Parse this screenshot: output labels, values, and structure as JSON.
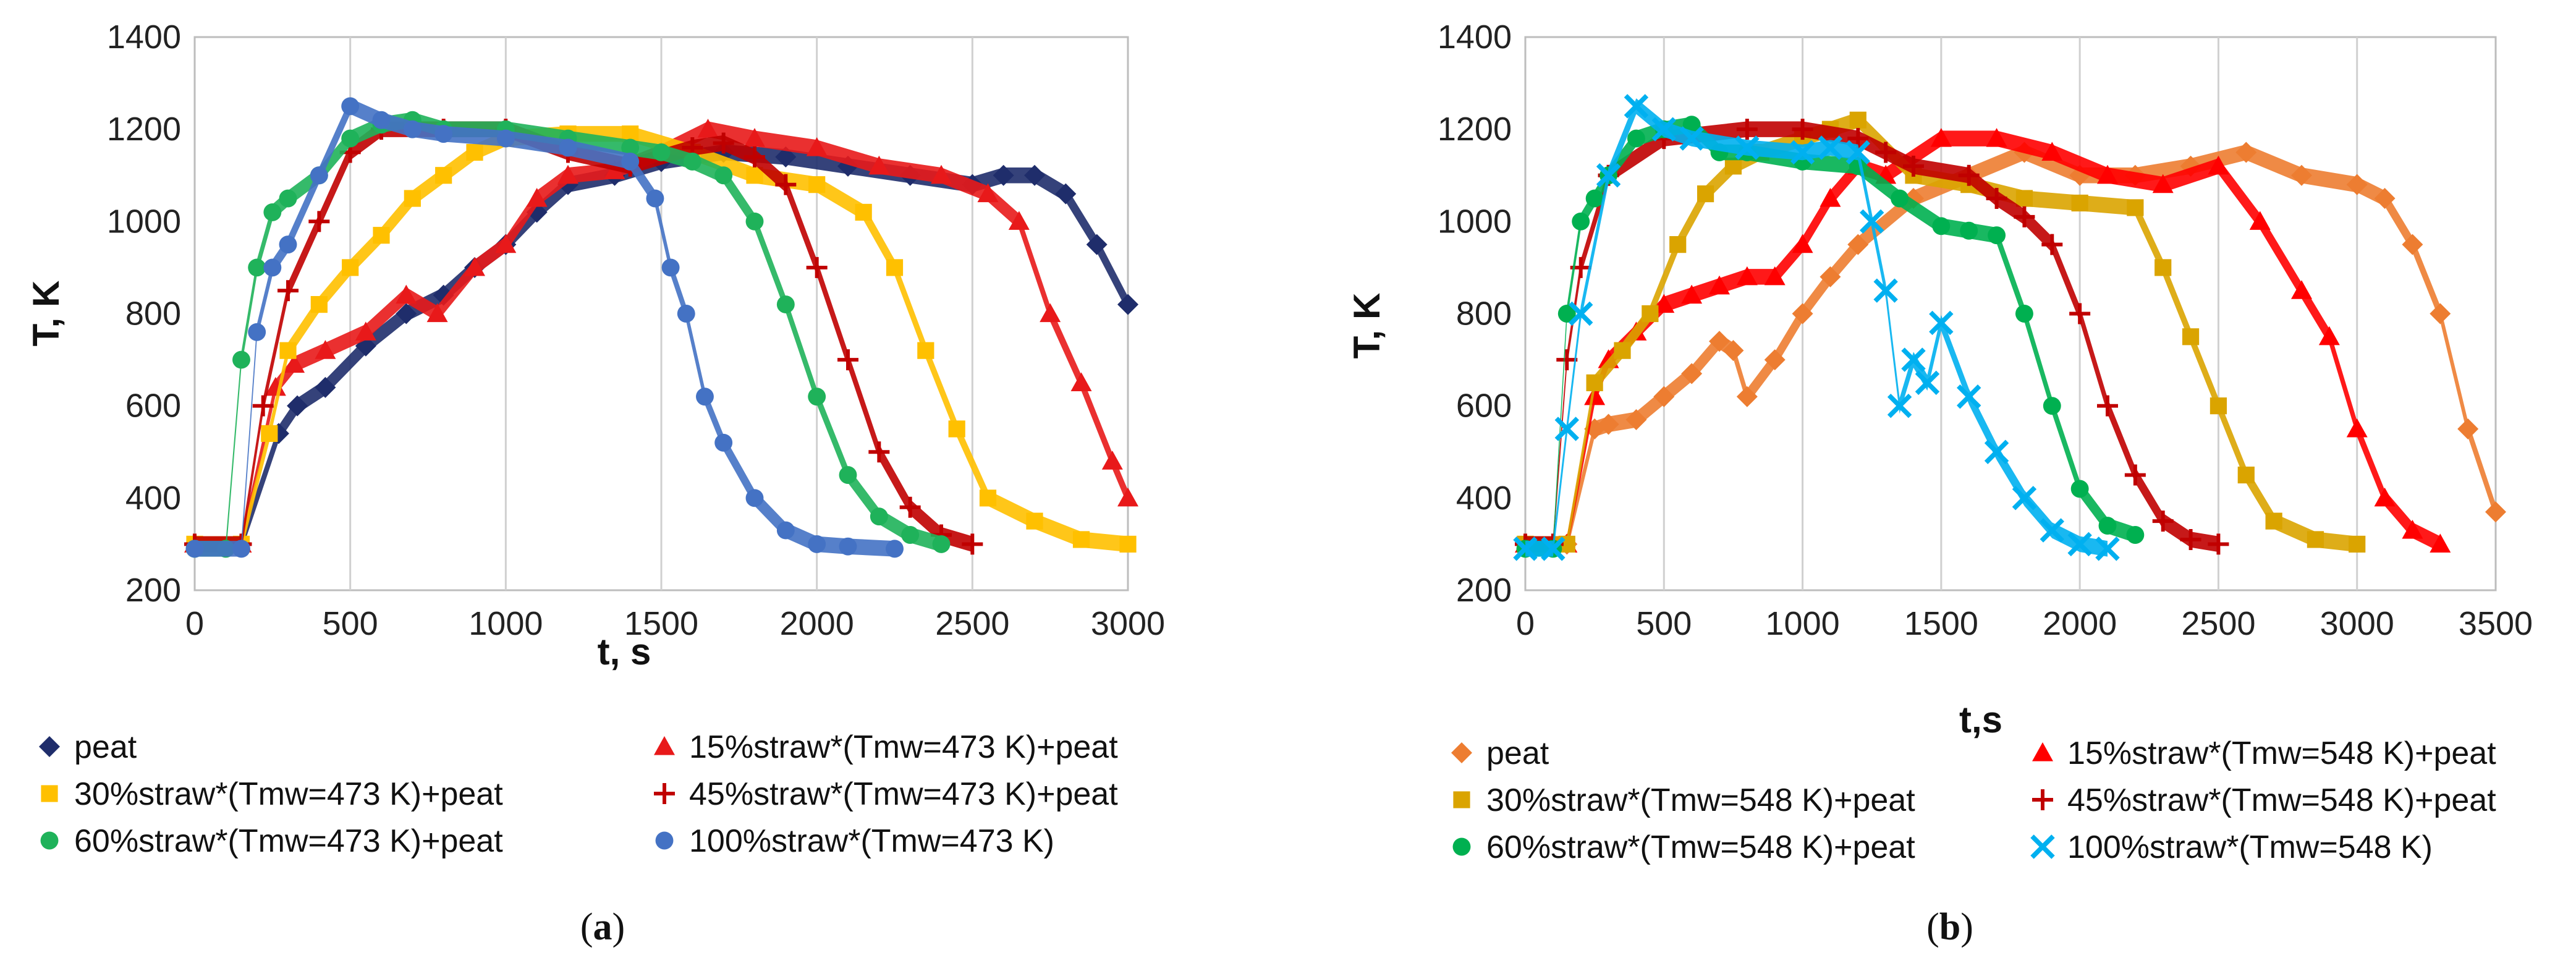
{
  "chart_data": [
    {
      "type": "scatter",
      "panel_label": "a",
      "xlabel": "t, s",
      "ylabel": "T, K",
      "xlim": [
        0,
        3000
      ],
      "ylim": [
        200,
        1400
      ],
      "xticks": [
        0,
        500,
        1000,
        1500,
        2000,
        2500,
        3000
      ],
      "yticks": [
        200,
        400,
        600,
        800,
        1000,
        1200,
        1400
      ],
      "grid": "vertical",
      "legend_position": "below",
      "series": [
        {
          "name": "peat",
          "color": "#1F2D6B",
          "marker": "diamond",
          "x": [
            0,
            150,
            270,
            330,
            420,
            550,
            680,
            800,
            900,
            1000,
            1100,
            1200,
            1350,
            1500,
            1700,
            1900,
            2100,
            2300,
            2500,
            2600,
            2700,
            2800,
            2900,
            3000
          ],
          "y": [
            300,
            300,
            540,
            600,
            640,
            730,
            800,
            840,
            900,
            950,
            1020,
            1080,
            1100,
            1130,
            1150,
            1140,
            1120,
            1100,
            1080,
            1100,
            1100,
            1060,
            950,
            820
          ]
        },
        {
          "name": "15%straw*(Tmw=473 K)+peat",
          "color": "#E8191A",
          "marker": "triangle",
          "x": [
            0,
            150,
            260,
            320,
            420,
            550,
            680,
            780,
            900,
            1000,
            1100,
            1200,
            1350,
            1500,
            1650,
            1800,
            2000,
            2200,
            2400,
            2550,
            2650,
            2750,
            2850,
            2950,
            3000
          ],
          "y": [
            300,
            300,
            640,
            690,
            720,
            760,
            840,
            800,
            900,
            950,
            1050,
            1100,
            1110,
            1150,
            1200,
            1180,
            1160,
            1120,
            1100,
            1060,
            1000,
            800,
            650,
            480,
            400
          ]
        },
        {
          "name": "30%straw*(Tmw=473 K)+peat",
          "color": "#FFC000",
          "marker": "square",
          "x": [
            0,
            150,
            240,
            300,
            400,
            500,
            600,
            700,
            800,
            900,
            1000,
            1200,
            1400,
            1600,
            1800,
            2000,
            2150,
            2250,
            2350,
            2450,
            2550,
            2700,
            2850,
            3000
          ],
          "y": [
            300,
            300,
            540,
            720,
            820,
            900,
            970,
            1050,
            1100,
            1150,
            1180,
            1190,
            1190,
            1150,
            1100,
            1080,
            1020,
            900,
            720,
            550,
            400,
            350,
            310,
            300
          ]
        },
        {
          "name": "45%straw*(Tmw=473 K)+peat",
          "color": "#C00000",
          "marker": "plus",
          "x": [
            0,
            150,
            220,
            300,
            400,
            500,
            600,
            800,
            1000,
            1200,
            1400,
            1600,
            1700,
            1800,
            1900,
            2000,
            2100,
            2200,
            2300,
            2400,
            2500
          ],
          "y": [
            300,
            300,
            600,
            850,
            1000,
            1150,
            1200,
            1200,
            1200,
            1150,
            1120,
            1160,
            1170,
            1140,
            1080,
            900,
            700,
            500,
            380,
            320,
            300
          ]
        },
        {
          "name": "60%straw*(Tmw=473 K)+peat",
          "color": "#1FB25A",
          "marker": "circle",
          "x": [
            0,
            100,
            150,
            200,
            250,
            300,
            400,
            500,
            600,
            700,
            800,
            1000,
            1200,
            1400,
            1500,
            1600,
            1700,
            1800,
            1900,
            2000,
            2100,
            2200,
            2300,
            2400
          ],
          "y": [
            290,
            290,
            700,
            900,
            1020,
            1050,
            1100,
            1180,
            1210,
            1220,
            1200,
            1200,
            1180,
            1160,
            1150,
            1130,
            1100,
            1000,
            820,
            620,
            450,
            360,
            320,
            300
          ]
        },
        {
          "name": "100%straw*(Tmw=473 K)",
          "color": "#4472C4",
          "marker": "circle",
          "x": [
            0,
            150,
            200,
            250,
            300,
            400,
            500,
            600,
            700,
            800,
            1000,
            1200,
            1400,
            1480,
            1530,
            1580,
            1640,
            1700,
            1800,
            1900,
            2000,
            2100,
            2250
          ],
          "y": [
            290,
            290,
            760,
            900,
            950,
            1100,
            1250,
            1220,
            1200,
            1190,
            1180,
            1160,
            1130,
            1050,
            900,
            800,
            620,
            520,
            400,
            330,
            300,
            295,
            290
          ]
        }
      ]
    },
    {
      "type": "scatter",
      "panel_label": "b",
      "xlabel": "t,s",
      "ylabel": "T, K",
      "xlim": [
        0,
        3500
      ],
      "ylim": [
        200,
        1400
      ],
      "xticks": [
        0,
        500,
        1000,
        1500,
        2000,
        2500,
        3000,
        3500
      ],
      "yticks": [
        200,
        400,
        600,
        800,
        1000,
        1200,
        1400
      ],
      "grid": "vertical",
      "legend_position": "below",
      "series": [
        {
          "name": "peat",
          "color": "#ED7D31",
          "marker": "diamond",
          "x": [
            0,
            150,
            250,
            300,
            400,
            500,
            600,
            700,
            750,
            800,
            900,
            1000,
            1100,
            1200,
            1400,
            1600,
            1800,
            2000,
            2200,
            2400,
            2600,
            2800,
            3000,
            3100,
            3200,
            3300,
            3400,
            3500
          ],
          "y": [
            300,
            300,
            550,
            560,
            570,
            620,
            670,
            740,
            720,
            620,
            700,
            800,
            880,
            950,
            1050,
            1100,
            1150,
            1100,
            1100,
            1120,
            1150,
            1100,
            1080,
            1050,
            950,
            800,
            550,
            370
          ]
        },
        {
          "name": "15%straw*(Tmw=548 K)+peat",
          "color": "#FF0000",
          "marker": "triangle",
          "x": [
            0,
            150,
            250,
            300,
            400,
            500,
            600,
            700,
            800,
            900,
            1000,
            1100,
            1200,
            1300,
            1500,
            1700,
            1900,
            2100,
            2300,
            2500,
            2650,
            2800,
            2900,
            3000,
            3100,
            3200,
            3300
          ],
          "y": [
            300,
            300,
            620,
            700,
            760,
            820,
            840,
            860,
            880,
            880,
            950,
            1050,
            1120,
            1100,
            1180,
            1180,
            1150,
            1100,
            1080,
            1120,
            1000,
            850,
            750,
            550,
            400,
            330,
            300
          ]
        },
        {
          "name": "30%straw*(Tmw=548 K)+peat",
          "color": "#DAA400",
          "marker": "square",
          "x": [
            0,
            150,
            250,
            350,
            450,
            550,
            650,
            750,
            850,
            1000,
            1100,
            1200,
            1400,
            1600,
            1800,
            2000,
            2200,
            2300,
            2400,
            2500,
            2600,
            2700,
            2850,
            3000
          ],
          "y": [
            300,
            300,
            650,
            720,
            800,
            950,
            1060,
            1120,
            1150,
            1180,
            1200,
            1220,
            1100,
            1080,
            1050,
            1040,
            1030,
            900,
            750,
            600,
            450,
            350,
            310,
            300
          ]
        },
        {
          "name": "45%straw*(Tmw=548 K)+peat",
          "color": "#C00000",
          "marker": "plus",
          "x": [
            0,
            100,
            150,
            200,
            300,
            500,
            800,
            1000,
            1200,
            1300,
            1400,
            1600,
            1700,
            1800,
            1900,
            2000,
            2100,
            2200,
            2300,
            2400,
            2500
          ],
          "y": [
            300,
            300,
            700,
            900,
            1100,
            1180,
            1200,
            1200,
            1180,
            1150,
            1120,
            1100,
            1050,
            1010,
            950,
            800,
            600,
            450,
            350,
            310,
            300
          ]
        },
        {
          "name": "60%straw*(Tmw=548 K)+peat",
          "color": "#00B050",
          "marker": "circle",
          "x": [
            0,
            100,
            150,
            200,
            250,
            300,
            400,
            500,
            600,
            700,
            800,
            1000,
            1200,
            1350,
            1500,
            1600,
            1700,
            1800,
            1900,
            2000,
            2100,
            2200
          ],
          "y": [
            290,
            290,
            800,
            1000,
            1050,
            1100,
            1180,
            1200,
            1210,
            1150,
            1150,
            1130,
            1120,
            1050,
            990,
            980,
            970,
            800,
            600,
            420,
            340,
            320
          ]
        },
        {
          "name": "100%straw*(Tmw=548 K)",
          "color": "#00B0F0",
          "marker": "x",
          "x": [
            0,
            100,
            150,
            200,
            300,
            400,
            500,
            600,
            800,
            1000,
            1100,
            1200,
            1250,
            1300,
            1350,
            1400,
            1450,
            1500,
            1600,
            1700,
            1800,
            1900,
            2000,
            2100
          ],
          "y": [
            290,
            290,
            550,
            800,
            1100,
            1250,
            1200,
            1180,
            1160,
            1150,
            1160,
            1150,
            1000,
            850,
            600,
            700,
            650,
            780,
            620,
            500,
            400,
            330,
            300,
            290
          ]
        }
      ]
    }
  ]
}
